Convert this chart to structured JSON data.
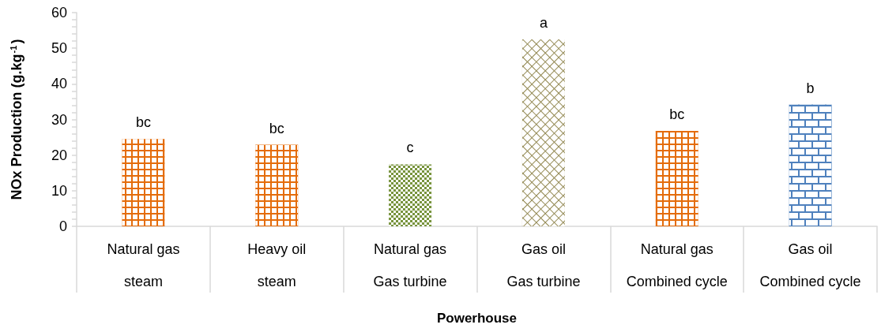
{
  "chart_data": {
    "type": "bar",
    "xlabel": "Powerhouse",
    "ylabel": "NOx Production (g.kg$^{-1}$)",
    "categories": [
      "Natural gas\nsteam",
      "Heavy oil\nsteam",
      "Natural gas\nGas turbine",
      "Gas oil\nGas turbine",
      "Natural gas\nCombined cycle",
      "Gas oil\nCombined cycle"
    ],
    "values": [
      24.5,
      22.9,
      17.4,
      52.5,
      26.8,
      34.2
    ],
    "colors": [
      "#e46c0a",
      "#e46c0a",
      "#77933c",
      "#948a54",
      "#e46c0a",
      "#4f81bd"
    ],
    "value_labels": [
      "bc",
      "bc",
      "c",
      "a",
      "bc",
      "b"
    ],
    "ylim": [
      0,
      60
    ],
    "yticks": [
      0,
      10,
      20,
      30,
      40,
      50,
      60
    ]
  }
}
